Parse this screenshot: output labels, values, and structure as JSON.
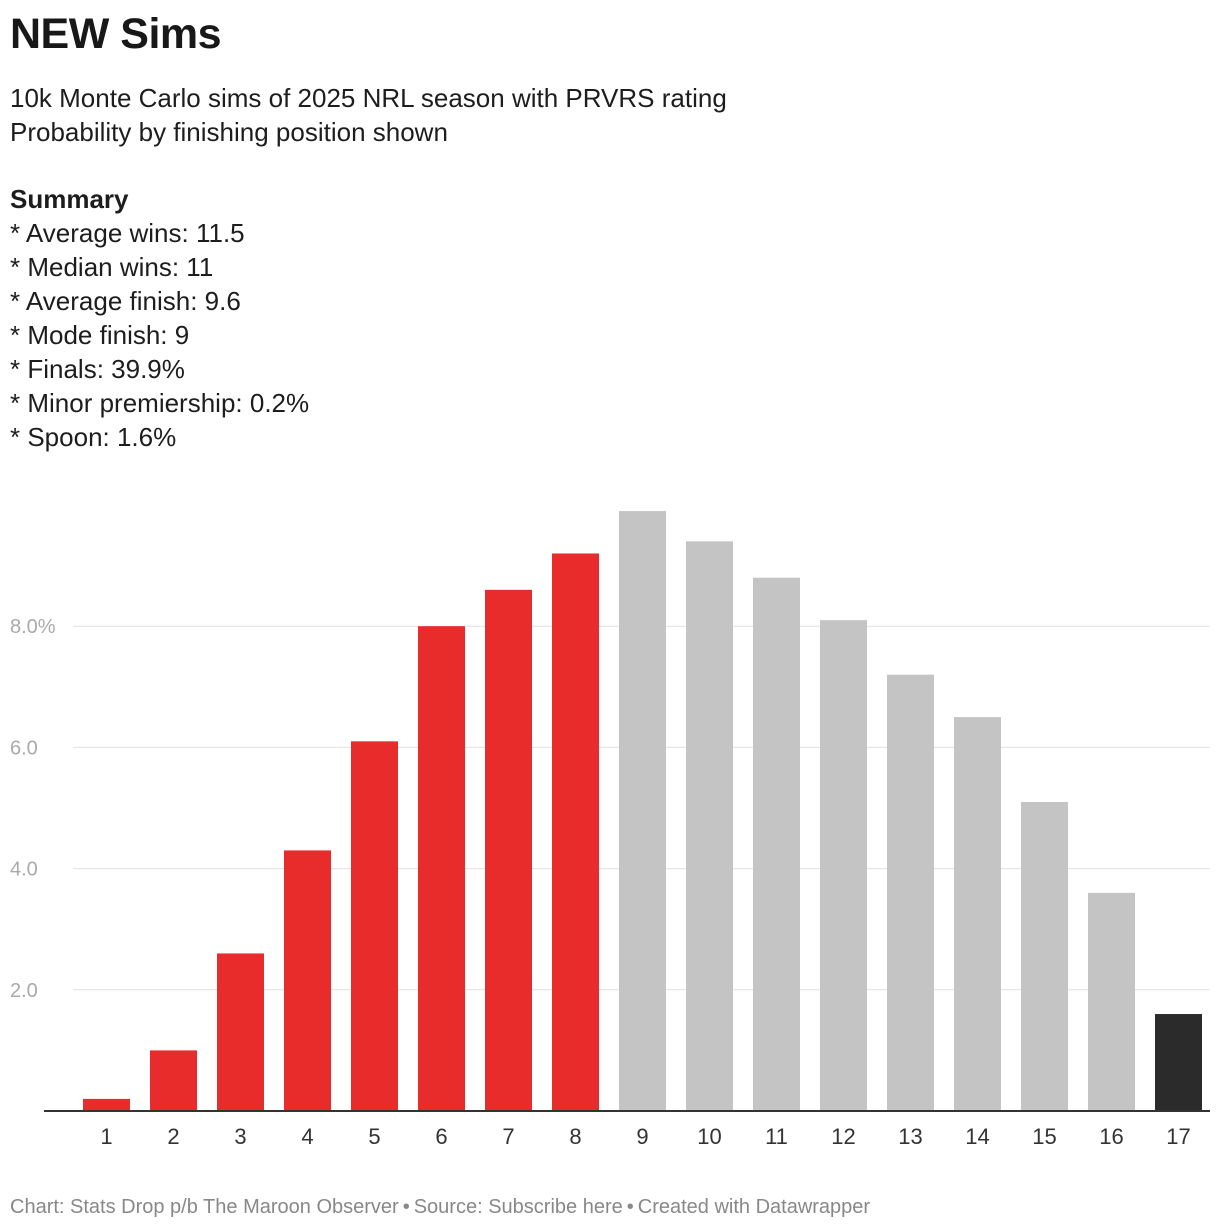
{
  "title": "NEW Sims",
  "subtitle": "10k Monte Carlo sims of 2025 NRL season with PRVRS rating\nProbability by finishing position shown",
  "summary": {
    "heading": "Summary",
    "lines": [
      "* Average wins: 11.5",
      "* Median wins: 11",
      "* Average finish: 9.6",
      "* Mode finish: 9",
      "* Finals: 39.9%",
      "* Minor premiership: 0.2%",
      "* Spoon: 1.6%"
    ]
  },
  "footer": {
    "chart_credit": "Chart: Stats Drop p/b The Maroon Observer",
    "source": "Source: Subscribe here",
    "created": "Created with Datawrapper",
    "separator": "•"
  },
  "colors": {
    "finals": "#e82b2b",
    "non_finals": "#c4c4c4",
    "spoon": "#2b2b2b",
    "gridline": "#e0e0e0",
    "axis_text": "#aaaaaa",
    "category_text": "#333333"
  },
  "chart_data": {
    "type": "bar",
    "categories": [
      "1",
      "2",
      "3",
      "4",
      "5",
      "6",
      "7",
      "8",
      "9",
      "10",
      "11",
      "12",
      "13",
      "14",
      "15",
      "16",
      "17"
    ],
    "values": [
      0.2,
      1.0,
      2.6,
      4.3,
      6.1,
      8.0,
      8.6,
      9.2,
      9.9,
      9.4,
      8.8,
      8.1,
      7.2,
      6.5,
      5.1,
      3.6,
      1.6
    ],
    "groups": [
      "finals",
      "finals",
      "finals",
      "finals",
      "finals",
      "finals",
      "finals",
      "finals",
      "non_finals",
      "non_finals",
      "non_finals",
      "non_finals",
      "non_finals",
      "non_finals",
      "non_finals",
      "non_finals",
      "spoon"
    ],
    "yticks": [
      2.0,
      4.0,
      6.0,
      8.0
    ],
    "ytick_labels": [
      "2.0",
      "4.0",
      "6.0",
      "8.0%"
    ],
    "ylim": [
      0,
      10
    ],
    "xlabel": "",
    "ylabel": "",
    "grid": true,
    "legend": "none"
  }
}
